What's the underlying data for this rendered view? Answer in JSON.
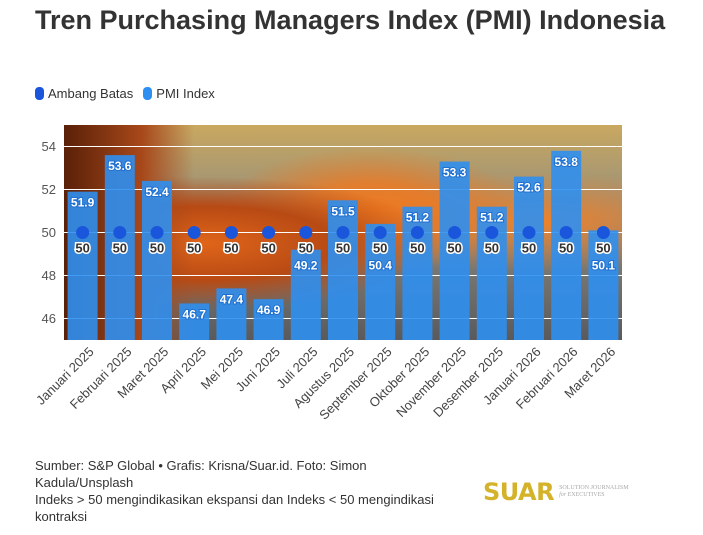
{
  "title": "Tren Purchasing Managers Index (PMI) Indonesia",
  "legend": [
    {
      "label": "Ambang Batas",
      "color": "#1a56db"
    },
    {
      "label": "PMI Index",
      "color": "#2f8ff0"
    }
  ],
  "chart_data": {
    "type": "bar",
    "categories": [
      "Januari 2025",
      "Februari 2025",
      "Maret 2025",
      "April 2025",
      "Mei 2025",
      "Juni 2025",
      "Juli 2025",
      "Agustus 2025",
      "September 2025",
      "Oktober 2025",
      "November 2025",
      "Desember 2025",
      "Januari 2026",
      "Februari 2026",
      "Maret 2026"
    ],
    "series": [
      {
        "name": "PMI Index",
        "type": "bar",
        "color": "#2f8ff0",
        "values": [
          51.9,
          53.6,
          52.4,
          46.7,
          47.4,
          46.9,
          49.2,
          51.5,
          50.4,
          51.2,
          53.3,
          51.2,
          52.6,
          53.8,
          50.1
        ]
      },
      {
        "name": "Ambang Batas",
        "type": "scatter",
        "color": "#1a56db",
        "values": [
          50,
          50,
          50,
          50,
          50,
          50,
          50,
          50,
          50,
          50,
          50,
          50,
          50,
          50,
          50
        ]
      }
    ],
    "yticks": [
      46,
      48,
      50,
      52,
      54
    ],
    "ylim": [
      45,
      55
    ],
    "grid": true,
    "legend_position": "top-left"
  },
  "footer": {
    "source": "Sumber: S&P Global • Grafis: Krisna/Suar.id. Foto: Simon Kadula/Unsplash",
    "note": "Indeks > 50 mengindikasikan ekspansi dan Indeks < 50 mengindikasi kontraksi"
  },
  "logo": {
    "name": "SUAR",
    "tagline": "SOLUTION JOURNALISM for EXECUTIVES"
  }
}
